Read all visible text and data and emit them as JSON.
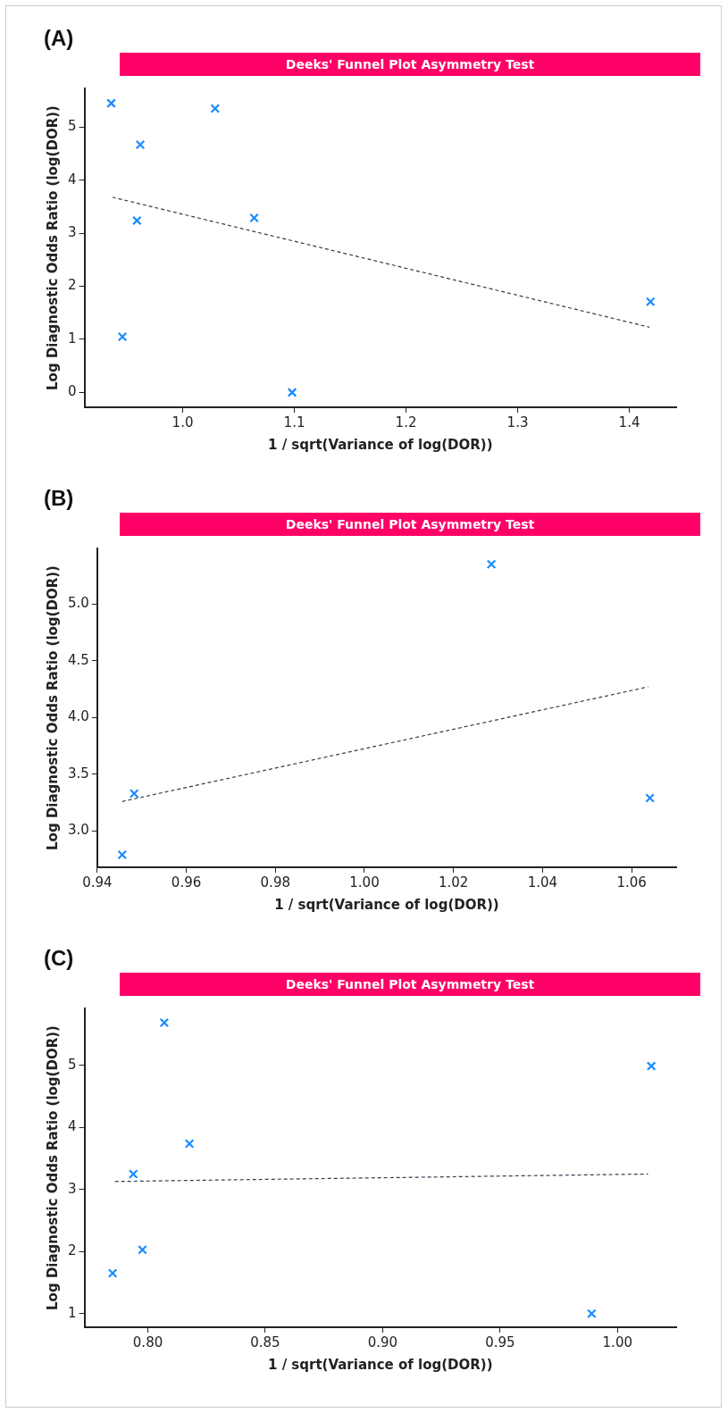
{
  "chart_data": [
    {
      "type": "scatter",
      "title": "Deeks' Funnel Plot Asymmetry Test",
      "xlabel": "1 / sqrt(Variance of log(DOR))",
      "ylabel": "Log Diagnostic Odds Ratio (log(DOR))",
      "annotations": [
        "(A)"
      ],
      "xlim": [
        0.912,
        1.442
      ],
      "ylim": [
        -0.28,
        5.73
      ],
      "xticks": [
        {
          "value": 1,
          "label": "1.0"
        },
        1.1,
        1.2,
        1.3,
        1.4
      ],
      "yticks": [
        0,
        1,
        2,
        3,
        4,
        5
      ],
      "grid": false,
      "legend": false,
      "marker": "cross",
      "series": [
        {
          "color": "#1a8cff",
          "x": [
            0.936,
            1.029,
            0.962,
            0.959,
            1.064,
            0.946,
            1.098,
            1.419
          ],
          "values": [
            5.45,
            5.35,
            4.67,
            3.24,
            3.29,
            1.05,
            0,
            1.71
          ]
        },
        {
          "type": "line",
          "color": "#2f3e4e",
          "line_style": "dashed",
          "marker": "none",
          "x": [
            0.937,
            1.418
          ],
          "values": [
            3.68,
            1.23
          ]
        }
      ]
    },
    {
      "type": "scatter",
      "title": "Deeks' Funnel Plot Asymmetry Test",
      "xlabel": "1 / sqrt(Variance of log(DOR))",
      "ylabel": "Log Diagnostic Odds Ratio (log(DOR))",
      "annotations": [
        "(B)"
      ],
      "xlim": [
        0.94,
        1.07
      ],
      "ylim": [
        2.68,
        5.49
      ],
      "xticks": [
        0.94,
        0.96,
        0.98,
        {
          "value": 1,
          "label": "1.00"
        },
        1.02,
        1.04,
        1.06
      ],
      "yticks": [
        {
          "value": 3,
          "label": "3.0"
        },
        3.5,
        {
          "value": 4,
          "label": "4.0"
        },
        4.5,
        {
          "value": 5,
          "label": "5.0"
        }
      ],
      "grid": false,
      "legend": false,
      "marker": "cross",
      "series": [
        {
          "color": "#1a8cff",
          "x": [
            1.0285,
            0.9483,
            0.9456,
            1.0641
          ],
          "values": [
            5.35,
            3.33,
            2.79,
            3.29
          ]
        },
        {
          "type": "line",
          "color": "#2f3e4e",
          "line_style": "dashed",
          "marker": "none",
          "x": [
            0.9456,
            1.0637
          ],
          "values": [
            3.26,
            4.27
          ]
        }
      ]
    },
    {
      "type": "scatter",
      "title": "Deeks' Funnel Plot Asymmetry Test",
      "xlabel": "1 / sqrt(Variance of log(DOR))",
      "ylabel": "Log Diagnostic Odds Ratio (log(DOR))",
      "annotations": [
        "(C)"
      ],
      "xlim": [
        0.773,
        1.025
      ],
      "ylim": [
        0.78,
        5.92
      ],
      "xticks": [
        {
          "value": 0.8,
          "label": "0.80"
        },
        0.85,
        {
          "value": 0.9,
          "label": "0.90"
        },
        0.95,
        {
          "value": 1,
          "label": "1.00"
        }
      ],
      "yticks": [
        1,
        2,
        3,
        4,
        5
      ],
      "grid": false,
      "legend": false,
      "marker": "cross",
      "series": [
        {
          "color": "#1a8cff",
          "x": [
            0.807,
            1.0144,
            0.8177,
            0.7938,
            0.7977,
            0.785,
            0.989
          ],
          "values": [
            5.69,
            4.99,
            3.74,
            3.25,
            2.03,
            1.65,
            1
          ]
        },
        {
          "type": "line",
          "color": "#2f3e4e",
          "line_style": "dashed",
          "marker": "none",
          "x": [
            0.786,
            1.013
          ],
          "values": [
            3.13,
            3.25
          ]
        }
      ]
    }
  ]
}
